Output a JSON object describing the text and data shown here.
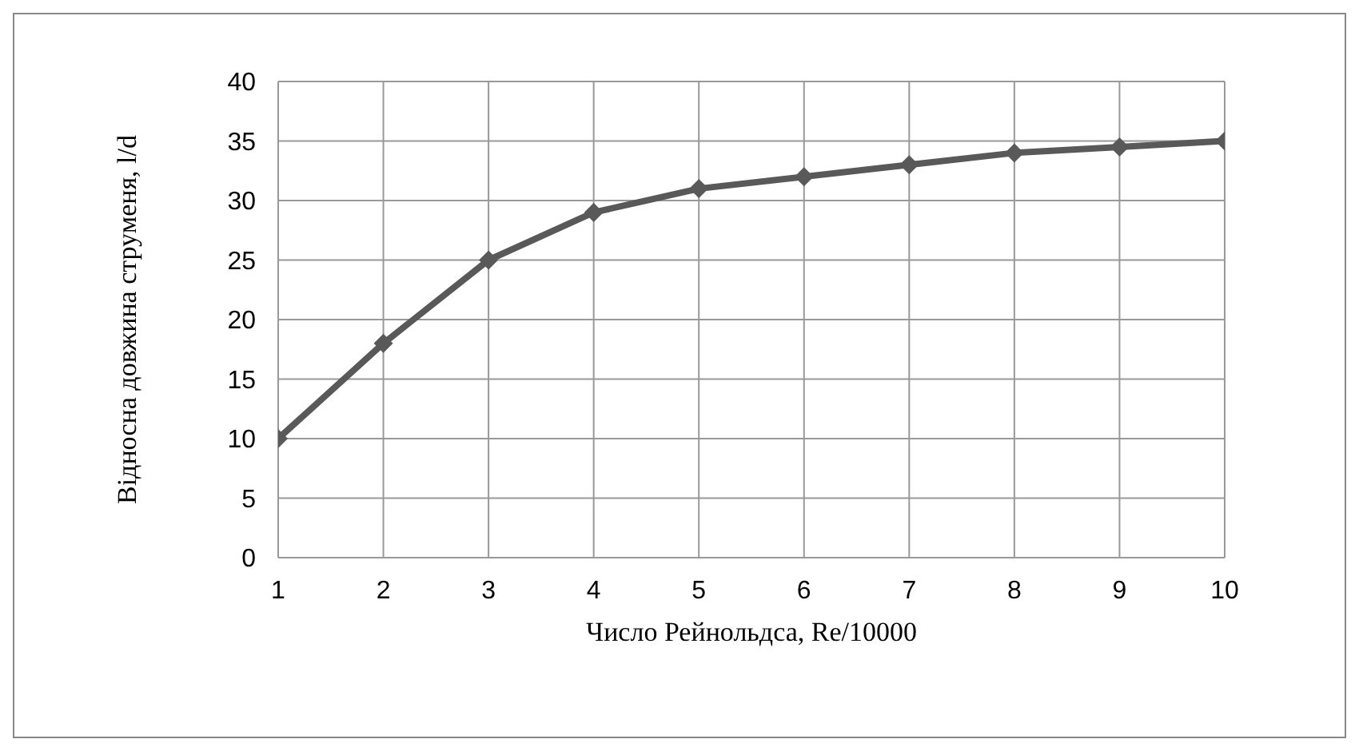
{
  "chart_data": {
    "type": "line",
    "xlabel": "Число Рейнольдса,  Re/10000",
    "ylabel": "Відносна  довжина струменя,  l/d",
    "x": [
      1,
      2,
      3,
      4,
      5,
      6,
      7,
      8,
      9,
      10
    ],
    "series": [
      {
        "color": "#595959",
        "values": [
          10,
          18,
          25,
          29,
          31,
          32,
          33,
          34,
          34.5,
          35
        ]
      }
    ],
    "xlim": [
      1,
      10
    ],
    "xticks": [
      1,
      2,
      3,
      4,
      5,
      6,
      7,
      8,
      9,
      10
    ],
    "ylim": [
      0,
      40
    ],
    "yticks": [
      0,
      5,
      10,
      15,
      20,
      25,
      30,
      35,
      40
    ],
    "grid": true,
    "marker": "diamond",
    "line_style": "solid",
    "legend": false
  }
}
